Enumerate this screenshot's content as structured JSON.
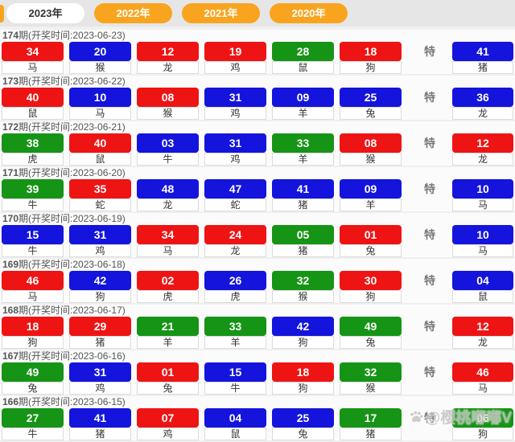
{
  "tabs": [
    {
      "label": "2023年",
      "active": true
    },
    {
      "label": "2022年",
      "active": false
    },
    {
      "label": "2021年",
      "active": false
    },
    {
      "label": "2020年",
      "active": false
    }
  ],
  "special_label": "特",
  "colors": {
    "red": "#ee1414",
    "blue": "#1414dd",
    "green": "#169416",
    "orange": "#f9a41f"
  },
  "watermark": {
    "icon": "paw-icon",
    "text": "@樱桃嘟嘟V"
  },
  "draws": [
    {
      "period": "174",
      "info": "期(开奖时间:2023-06-23)",
      "balls": [
        {
          "num": "34",
          "color": "red",
          "zodiac": "马"
        },
        {
          "num": "20",
          "color": "blue",
          "zodiac": "猴"
        },
        {
          "num": "12",
          "color": "red",
          "zodiac": "龙"
        },
        {
          "num": "19",
          "color": "red",
          "zodiac": "鸡"
        },
        {
          "num": "28",
          "color": "green",
          "zodiac": "鼠"
        },
        {
          "num": "18",
          "color": "red",
          "zodiac": "狗"
        }
      ],
      "special": {
        "num": "41",
        "color": "blue",
        "zodiac": "猪"
      }
    },
    {
      "period": "173",
      "info": "期(开奖时间:2023-06-22)",
      "balls": [
        {
          "num": "40",
          "color": "red",
          "zodiac": "鼠"
        },
        {
          "num": "10",
          "color": "blue",
          "zodiac": "马"
        },
        {
          "num": "08",
          "color": "red",
          "zodiac": "猴"
        },
        {
          "num": "31",
          "color": "blue",
          "zodiac": "鸡"
        },
        {
          "num": "09",
          "color": "blue",
          "zodiac": "羊"
        },
        {
          "num": "25",
          "color": "blue",
          "zodiac": "兔"
        }
      ],
      "special": {
        "num": "36",
        "color": "blue",
        "zodiac": "龙"
      }
    },
    {
      "period": "172",
      "info": "期(开奖时间:2023-06-21)",
      "balls": [
        {
          "num": "38",
          "color": "green",
          "zodiac": "虎"
        },
        {
          "num": "40",
          "color": "red",
          "zodiac": "鼠"
        },
        {
          "num": "03",
          "color": "blue",
          "zodiac": "牛"
        },
        {
          "num": "31",
          "color": "blue",
          "zodiac": "鸡"
        },
        {
          "num": "33",
          "color": "green",
          "zodiac": "羊"
        },
        {
          "num": "08",
          "color": "red",
          "zodiac": "猴"
        }
      ],
      "special": {
        "num": "12",
        "color": "red",
        "zodiac": "龙"
      }
    },
    {
      "period": "171",
      "info": "期(开奖时间:2023-06-20)",
      "balls": [
        {
          "num": "39",
          "color": "green",
          "zodiac": "牛"
        },
        {
          "num": "35",
          "color": "red",
          "zodiac": "蛇"
        },
        {
          "num": "48",
          "color": "blue",
          "zodiac": "龙"
        },
        {
          "num": "47",
          "color": "blue",
          "zodiac": "蛇"
        },
        {
          "num": "41",
          "color": "blue",
          "zodiac": "猪"
        },
        {
          "num": "09",
          "color": "blue",
          "zodiac": "羊"
        }
      ],
      "special": {
        "num": "10",
        "color": "blue",
        "zodiac": "马"
      }
    },
    {
      "period": "170",
      "info": "期(开奖时间:2023-06-19)",
      "balls": [
        {
          "num": "15",
          "color": "blue",
          "zodiac": "牛"
        },
        {
          "num": "31",
          "color": "blue",
          "zodiac": "鸡"
        },
        {
          "num": "34",
          "color": "red",
          "zodiac": "马"
        },
        {
          "num": "24",
          "color": "red",
          "zodiac": "龙"
        },
        {
          "num": "05",
          "color": "green",
          "zodiac": "猪"
        },
        {
          "num": "01",
          "color": "red",
          "zodiac": "兔"
        }
      ],
      "special": {
        "num": "10",
        "color": "blue",
        "zodiac": "马"
      }
    },
    {
      "period": "169",
      "info": "期(开奖时间:2023-06-18)",
      "balls": [
        {
          "num": "46",
          "color": "red",
          "zodiac": "马"
        },
        {
          "num": "42",
          "color": "blue",
          "zodiac": "狗"
        },
        {
          "num": "02",
          "color": "red",
          "zodiac": "虎"
        },
        {
          "num": "26",
          "color": "blue",
          "zodiac": "虎"
        },
        {
          "num": "32",
          "color": "green",
          "zodiac": "猴"
        },
        {
          "num": "30",
          "color": "red",
          "zodiac": "狗"
        }
      ],
      "special": {
        "num": "04",
        "color": "blue",
        "zodiac": "鼠"
      }
    },
    {
      "period": "168",
      "info": "期(开奖时间:2023-06-17)",
      "balls": [
        {
          "num": "18",
          "color": "red",
          "zodiac": "狗"
        },
        {
          "num": "29",
          "color": "red",
          "zodiac": "猪"
        },
        {
          "num": "21",
          "color": "green",
          "zodiac": "羊"
        },
        {
          "num": "33",
          "color": "green",
          "zodiac": "羊"
        },
        {
          "num": "42",
          "color": "blue",
          "zodiac": "狗"
        },
        {
          "num": "49",
          "color": "green",
          "zodiac": "兔"
        }
      ],
      "special": {
        "num": "12",
        "color": "red",
        "zodiac": "龙"
      }
    },
    {
      "period": "167",
      "info": "期(开奖时间:2023-06-16)",
      "balls": [
        {
          "num": "49",
          "color": "green",
          "zodiac": "兔"
        },
        {
          "num": "31",
          "color": "blue",
          "zodiac": "鸡"
        },
        {
          "num": "01",
          "color": "red",
          "zodiac": "兔"
        },
        {
          "num": "15",
          "color": "blue",
          "zodiac": "牛"
        },
        {
          "num": "18",
          "color": "red",
          "zodiac": "狗"
        },
        {
          "num": "32",
          "color": "green",
          "zodiac": "猴"
        }
      ],
      "special": {
        "num": "46",
        "color": "red",
        "zodiac": "马"
      }
    },
    {
      "period": "166",
      "info": "期(开奖时间:2023-06-15)",
      "balls": [
        {
          "num": "27",
          "color": "green",
          "zodiac": "牛"
        },
        {
          "num": "41",
          "color": "blue",
          "zodiac": "猪"
        },
        {
          "num": "07",
          "color": "red",
          "zodiac": "鸡"
        },
        {
          "num": "04",
          "color": "blue",
          "zodiac": "鼠"
        },
        {
          "num": "25",
          "color": "blue",
          "zodiac": "兔"
        },
        {
          "num": "17",
          "color": "green",
          "zodiac": "猪"
        }
      ],
      "special": {
        "num": "06",
        "color": "green",
        "zodiac": "狗"
      }
    }
  ]
}
